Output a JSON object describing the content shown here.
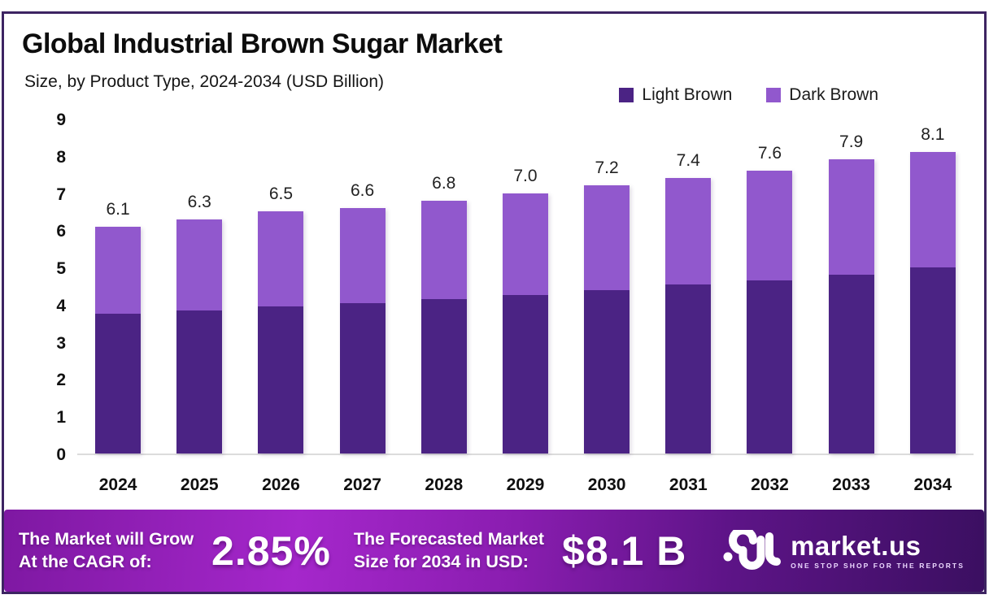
{
  "header": {
    "title": "Global Industrial Brown Sugar Market",
    "subtitle": "Size, by Product Type, 2024-2034 (USD Billion)"
  },
  "colors": {
    "light_brown": "#4b2384",
    "dark_brown": "#9158cd",
    "frame_border": "#3d2462",
    "banner_gradient_start": "#a527cb",
    "banner_gradient_end": "#3b0f61"
  },
  "legend": [
    {
      "label": "Light Brown",
      "color": "#4b2384"
    },
    {
      "label": "Dark Brown",
      "color": "#9158cd"
    }
  ],
  "chart_data": {
    "type": "bar",
    "stacked": true,
    "title": "Global Industrial Brown Sugar Market Size, by Product Type, 2024-2034 (USD Billion)",
    "categories": [
      "2024",
      "2025",
      "2026",
      "2027",
      "2028",
      "2029",
      "2030",
      "2031",
      "2032",
      "2033",
      "2034"
    ],
    "series": [
      {
        "name": "Light Brown",
        "color": "#4b2384",
        "values": [
          3.75,
          3.85,
          3.95,
          4.05,
          4.15,
          4.25,
          4.4,
          4.55,
          4.65,
          4.8,
          5.0
        ]
      },
      {
        "name": "Dark Brown",
        "color": "#9158cd",
        "values": [
          2.35,
          2.45,
          2.55,
          2.55,
          2.65,
          2.75,
          2.8,
          2.85,
          2.95,
          3.1,
          3.1
        ]
      }
    ],
    "totals_labels": [
      "6.1",
      "6.3",
      "6.5",
      "6.6",
      "6.8",
      "7.0",
      "7.2",
      "7.4",
      "7.6",
      "7.9",
      "8.1"
    ],
    "xlabel": "",
    "ylabel": "",
    "ylim": [
      0,
      9
    ],
    "yticks": [
      0,
      1,
      2,
      3,
      4,
      5,
      6,
      7,
      8,
      9
    ],
    "grid": false,
    "legend_position": "top-right"
  },
  "banner": {
    "cagr_label": "The Market will Grow\nAt the CAGR of:",
    "cagr_value": "2.85%",
    "forecast_label": "The Forecasted Market\nSize for 2034 in USD:",
    "forecast_value": "$8.1 B",
    "logo_name": "market.us",
    "logo_tagline": "ONE STOP SHOP FOR THE REPORTS"
  }
}
